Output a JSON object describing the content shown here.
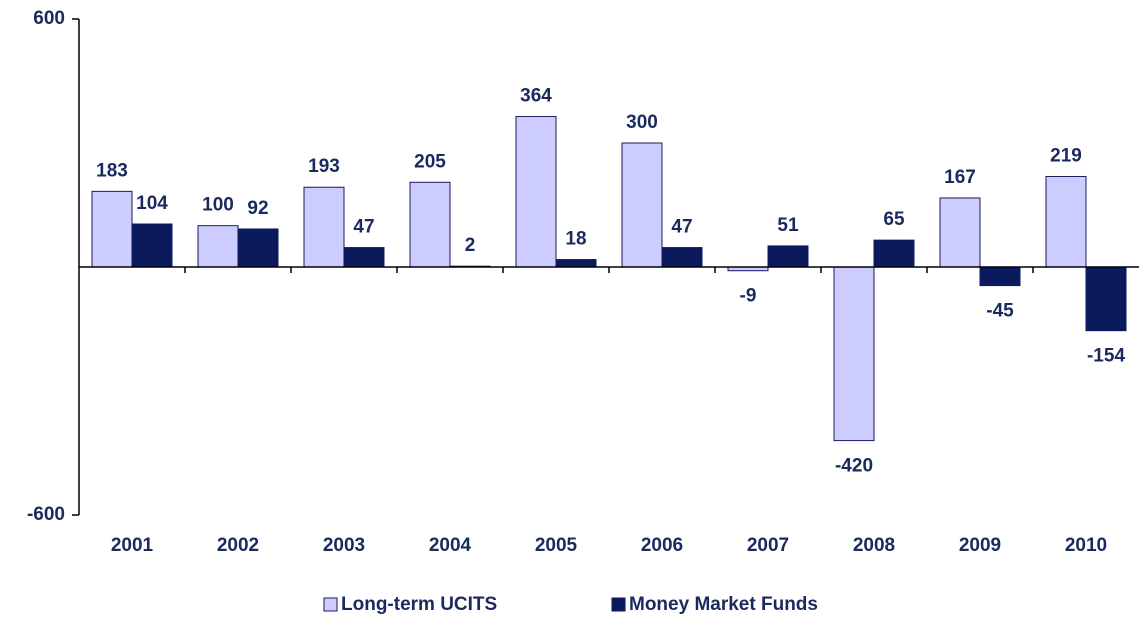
{
  "chart_data": {
    "type": "bar",
    "categories": [
      "2001",
      "2002",
      "2003",
      "2004",
      "2005",
      "2006",
      "2007",
      "2008",
      "2009",
      "2010"
    ],
    "series": [
      {
        "name": "Long-term UCITS",
        "color": "#ccccff",
        "values": [
          183,
          100,
          193,
          205,
          364,
          300,
          -9,
          -420,
          167,
          219
        ]
      },
      {
        "name": "Money Market Funds",
        "color": "#0b1a5c",
        "values": [
          104,
          92,
          47,
          2,
          18,
          47,
          51,
          65,
          -45,
          -154
        ]
      }
    ],
    "ylim": [
      -600,
      600
    ],
    "yticks": [
      -600,
      600
    ],
    "grid": false,
    "legend": "bottom"
  }
}
